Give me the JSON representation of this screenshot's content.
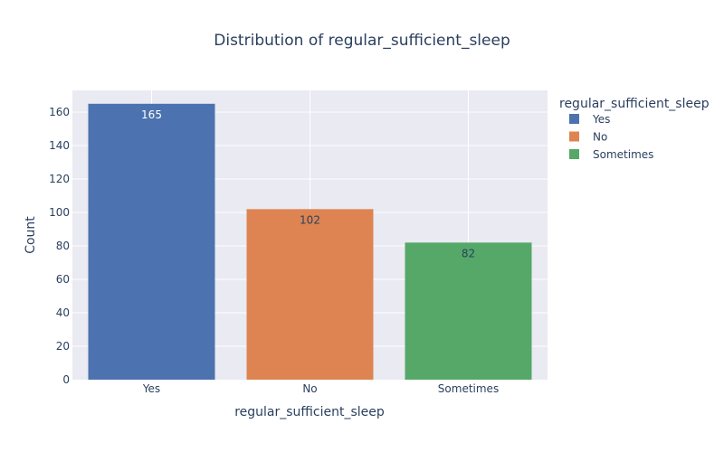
{
  "chart_data": {
    "type": "bar",
    "title": "Distribution of regular_sufficient_sleep",
    "xlabel": "regular_sufficient_sleep",
    "ylabel": "Count",
    "categories": [
      "Yes",
      "No",
      "Sometimes"
    ],
    "values": [
      165,
      102,
      82
    ],
    "ylim": [
      0,
      173
    ],
    "yticks": [
      0,
      20,
      40,
      60,
      80,
      100,
      120,
      140,
      160
    ],
    "grid": true,
    "legend": {
      "title": "regular_sufficient_sleep",
      "placement": "top-right",
      "entries": [
        "Yes",
        "No",
        "Sometimes"
      ]
    },
    "colors": [
      "#4c72b0",
      "#dd8452",
      "#55a868"
    ],
    "label_colors": [
      "#ffffff",
      "#2a3f5f",
      "#2a3f5f"
    ]
  }
}
